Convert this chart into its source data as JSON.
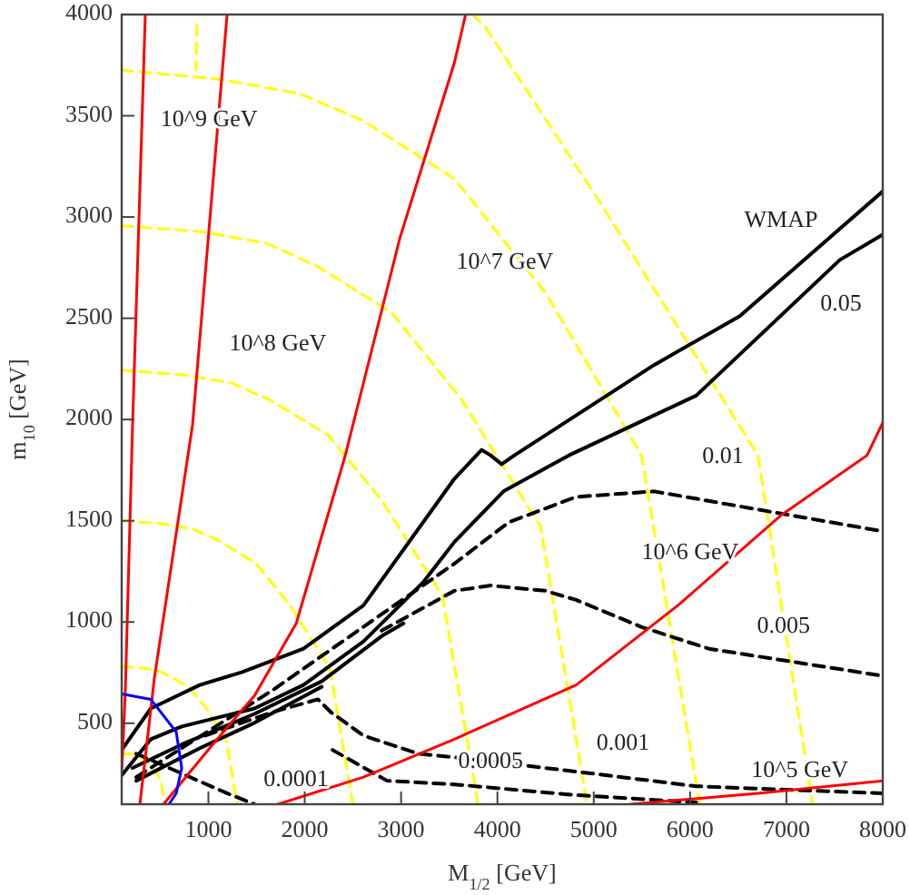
{
  "chart_data": {
    "type": "line",
    "xlabel": "M$_{1/2}$ [GeV]",
    "ylabel": "m$_{10}$ [GeV]",
    "xlim": [
      100,
      8000
    ],
    "ylim": [
      100,
      4000
    ],
    "xticks": [
      1000,
      2000,
      3000,
      4000,
      5000,
      6000,
      7000,
      8000
    ],
    "yticks": [
      500,
      1000,
      1500,
      2000,
      2500,
      3000,
      3500,
      4000
    ],
    "grid": false,
    "marker": "none",
    "series": [
      {
        "color": "#ffff00",
        "line_style": "dashed",
        "x": [
          3742,
          3874,
          5063,
          6705,
          7271
        ],
        "values": [
          4000,
          3939,
          3073,
          1823,
          100
        ]
      },
      {
        "color": "#ffff00",
        "line_style": "dashed",
        "x": [
          880,
          870
        ],
        "values": [
          3950,
          3725
        ]
      },
      {
        "color": "#ffff00",
        "line_style": "dashed",
        "x": [
          100,
          1100,
          1949,
          2610,
          3553,
          4497,
          5497,
          6101
        ],
        "values": [
          3725,
          3681,
          3609,
          3475,
          3189,
          2627,
          1823,
          100
        ]
      },
      {
        "color": "#ffff00",
        "line_style": "dashed",
        "x": [
          100,
          921,
          1598,
          2129,
          2902,
          3627,
          4448,
          4931
        ],
        "values": [
          2957,
          2928,
          2871,
          2757,
          2528,
          2100,
          1471,
          100
        ]
      },
      {
        "color": "#ffff00",
        "line_style": "dashed",
        "x": [
          100,
          729,
          1247,
          1654,
          2245,
          2800,
          3429,
          3799
        ],
        "values": [
          2243,
          2222,
          2179,
          2093,
          1922,
          1600,
          1129,
          100
        ]
      },
      {
        "color": "#ffff00",
        "line_style": "dashed",
        "x": [
          100,
          508,
          844,
          1108,
          1492,
          1852,
          2260,
          2500
        ],
        "values": [
          1500,
          1486,
          1458,
          1402,
          1290,
          1080,
          772,
          100
        ]
      },
      {
        "color": "#ffff00",
        "line_style": "dashed",
        "x": [
          100,
          304,
          472,
          604,
          796,
          976,
          1180,
          1300
        ],
        "values": [
          780,
          773,
          760,
          732,
          678,
          576,
          426,
          100
        ]
      },
      {
        "color": "#ffff00",
        "line_style": "dashed",
        "x": [
          100,
          177,
          240,
          289,
          361,
          429,
          505,
          550
        ],
        "values": [
          350,
          348,
          343,
          333,
          313,
          275,
          220,
          100
        ]
      },
      {
        "color": "#000000",
        "line_style": "dashed",
        "x": [
          251,
          1666,
          2742,
          3553,
          4119,
          4818,
          5629,
          6384,
          8000
        ],
        "values": [
          234,
          663,
          1020,
          1288,
          1493,
          1618,
          1645,
          1582,
          1448
        ]
      },
      {
        "color": "#000000",
        "line_style": "dashed",
        "x": [
          2798,
          3553,
          3930,
          4497,
          4818,
          5497,
          6195,
          8000
        ],
        "values": [
          957,
          1154,
          1180,
          1154,
          1109,
          975,
          868,
          734
        ]
      },
      {
        "color": "#000000",
        "line_style": "dashed",
        "x": [
          968,
          1666,
          2138,
          2270,
          2610,
          3176,
          3553,
          4818,
          6063,
          8000
        ],
        "values": [
          439,
          555,
          618,
          555,
          439,
          350,
          332,
          261,
          189,
          154
        ]
      },
      {
        "color": "#000000",
        "line_style": "dashed",
        "x": [
          251,
          723,
          1194,
          1478
        ],
        "values": [
          350,
          252,
          154,
          100
        ]
      },
      {
        "color": "#000000",
        "line_style": "dashed",
        "x": [
          2289,
          2855,
          3553,
          4818,
          6063
        ],
        "values": [
          368,
          216,
          198,
          145,
          109
        ]
      },
      {
        "color": "#000000",
        "line_style": "solid",
        "x": [
          100,
          402,
          911,
          1345,
          1987,
          2610,
          3553,
          3836,
          3930,
          4044,
          4176,
          5629,
          6516,
          8000
        ],
        "values": [
          368,
          573,
          689,
          752,
          868,
          1082,
          1707,
          1850,
          1823,
          1779,
          1823,
          2270,
          2511,
          3127
        ]
      },
      {
        "color": "#000000",
        "line_style": "solid",
        "x": [
          100,
          402,
          723,
          1478,
          1987,
          2610,
          3233,
          3553,
          4063,
          4742,
          6063,
          7554,
          8000
        ],
        "values": [
          243,
          421,
          484,
          573,
          689,
          904,
          1198,
          1395,
          1645,
          1823,
          2118,
          2788,
          2913
        ]
      },
      {
        "color": "#000000",
        "line_style": "solid",
        "x": [
          213,
          723,
          1478,
          2176,
          2798,
          3025
        ],
        "values": [
          279,
          395,
          546,
          707,
          930,
          993
        ]
      },
      {
        "color": "#000000",
        "line_style": "solid",
        "x": [
          251,
          911,
          1478,
          2176
        ],
        "values": [
          216,
          377,
          502,
          680
        ]
      },
      {
        "color": "#ff0000",
        "line_style": "solid",
        "x": [
          345,
          213,
          138,
          100
        ],
        "values": [
          4000,
          1975,
          662,
          261
        ]
      },
      {
        "color": "#ff0000",
        "line_style": "solid",
        "x": [
          1194,
          836,
          440,
          289
        ],
        "values": [
          4000,
          1975,
          725,
          100
        ]
      },
      {
        "color": "#ff0000",
        "line_style": "solid",
        "x": [
          3670,
          3553,
          2987,
          2421,
          1912,
          1478,
          1044,
          534
        ],
        "values": [
          4000,
          3761,
          2895,
          1823,
          993,
          636,
          395,
          100
        ]
      },
      {
        "color": "#ff0000",
        "line_style": "solid",
        "x": [
          1723,
          2610,
          3553,
          4818,
          5874,
          6950,
          7837,
          8000
        ],
        "values": [
          100,
          234,
          421,
          689,
          1082,
          1529,
          1823,
          1984
        ]
      },
      {
        "color": "#ff0000",
        "line_style": "solid",
        "x": [
          5384,
          6705,
          8000
        ],
        "values": [
          100,
          154,
          216
        ]
      },
      {
        "color": "#0000ff",
        "line_style": "solid",
        "x": [
          100,
          402,
          666,
          723,
          666,
          591
        ],
        "values": [
          645,
          618,
          457,
          279,
          154,
          100
        ]
      }
    ],
    "annotations": [
      {
        "text": "10^9 GeV",
        "x": 1006,
        "y": 3475
      },
      "10^8 GeV",
      "10^7 GeV",
      "WMAP",
      "0.05",
      "0.01",
      "10^6 GeV",
      {
        "text": "0.005",
        "x": 6969,
        "y": 975
      },
      "0.001",
      {
        "text": "10^5 GeV",
        "x": 7139,
        "y": 261
      },
      {
        "text": "0.0005",
        "x": 3930,
        "y": 305
      },
      "0.0001"
    ]
  }
}
